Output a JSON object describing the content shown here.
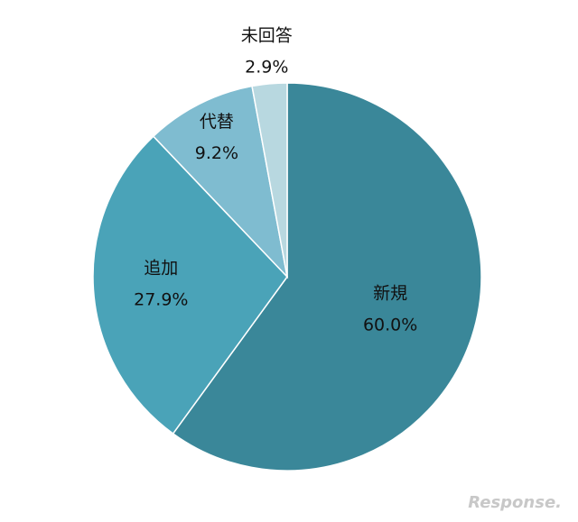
{
  "chart_data": {
    "type": "pie",
    "categories": [
      "新規",
      "追加",
      "代替",
      "未回答"
    ],
    "values": [
      60.0,
      27.9,
      9.2,
      2.9
    ],
    "value_labels": [
      "60.0%",
      "27.9%",
      "9.2%",
      "2.9%"
    ],
    "colors": [
      "#3a8799",
      "#4aa3b8",
      "#7fbcd0",
      "#b8d8e0"
    ],
    "watermark": "Response."
  }
}
